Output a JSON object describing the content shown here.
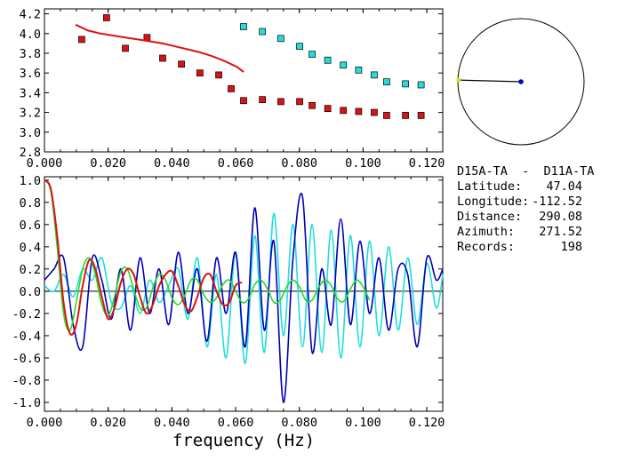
{
  "station_pair": "D15A-TA  -  D11A-TA",
  "info": [
    {
      "label": "Latitude:",
      "value": "47.04"
    },
    {
      "label": "Longitude:",
      "value": "-112.52"
    },
    {
      "label": "Distance:",
      "value": "290.08"
    },
    {
      "label": "Azimuth:",
      "value": "271.52"
    },
    {
      "label": "Records:",
      "value": "198"
    }
  ],
  "colors": {
    "red": "#dd1111",
    "cyan": "#22dddd",
    "blue": "#0000bb",
    "green": "#22dd22",
    "black": "#000000"
  },
  "chart_data": [
    {
      "type": "scatter",
      "title": "",
      "xlabel": "",
      "ylabel": "",
      "xlim": [
        0.0,
        0.125
      ],
      "ylim": [
        2.8,
        4.25
      ],
      "x_ticks": [
        "0.000",
        "0.020",
        "0.040",
        "0.060",
        "0.080",
        "0.100",
        "0.120"
      ],
      "x_tick_values": [
        0,
        0.02,
        0.04,
        0.06,
        0.08,
        0.1,
        0.12
      ],
      "y_ticks": [
        "2.8",
        "3.0",
        "3.2",
        "3.4",
        "3.6",
        "3.8",
        "4.0",
        "4.2"
      ],
      "y_tick_values": [
        2.8,
        3.0,
        3.2,
        3.4,
        3.6,
        3.8,
        4.0,
        4.2
      ],
      "series": [
        {
          "color": "#dd1111",
          "marker": "square",
          "x": [
            0.0117,
            0.0195,
            0.0254,
            0.0322,
            0.0371,
            0.043,
            0.0488,
            0.0547,
            0.0586,
            0.0625,
            0.0684,
            0.0742,
            0.0801,
            0.084,
            0.0889,
            0.0938,
            0.0986,
            0.1035,
            0.1074,
            0.1133,
            0.1182
          ],
          "y": [
            3.94,
            4.16,
            3.85,
            3.96,
            3.75,
            3.69,
            3.6,
            3.58,
            3.44,
            3.32,
            3.33,
            3.31,
            3.31,
            3.27,
            3.24,
            3.22,
            3.21,
            3.2,
            3.17,
            3.17,
            3.17
          ]
        },
        {
          "color": "#22dddd",
          "marker": "square",
          "x": [
            0.0625,
            0.0684,
            0.0742,
            0.0801,
            0.084,
            0.0889,
            0.0938,
            0.0986,
            0.1035,
            0.1074,
            0.1133,
            0.1182
          ],
          "y": [
            4.07,
            4.02,
            3.95,
            3.87,
            3.79,
            3.73,
            3.68,
            3.63,
            3.58,
            3.51,
            3.49,
            3.48
          ]
        },
        {
          "color": "#dd1111",
          "marker": "line",
          "x": [
            0.0098,
            0.0137,
            0.0176,
            0.0215,
            0.0254,
            0.0293,
            0.0332,
            0.0371,
            0.041,
            0.0449,
            0.0488,
            0.0527,
            0.0566,
            0.0605,
            0.0625
          ],
          "y": [
            4.09,
            4.03,
            4.0,
            3.98,
            3.96,
            3.94,
            3.92,
            3.9,
            3.87,
            3.84,
            3.81,
            3.77,
            3.72,
            3.66,
            3.61
          ]
        }
      ]
    },
    {
      "type": "line",
      "title": "",
      "xlabel": "frequency (Hz)",
      "ylabel": "",
      "xlim": [
        0.0,
        0.125
      ],
      "ylim": [
        -1.08,
        1.03
      ],
      "x_ticks": [
        "0.000",
        "0.020",
        "0.040",
        "0.060",
        "0.080",
        "0.100",
        "0.120"
      ],
      "x_tick_values": [
        0,
        0.02,
        0.04,
        0.06,
        0.08,
        0.1,
        0.12
      ],
      "y_ticks": [
        "1.0",
        "0.8",
        "0.6",
        "0.4",
        "0.2",
        "0.0",
        "-0.2",
        "-0.4",
        "-0.6",
        "-0.8",
        "-1.0"
      ],
      "y_tick_values": [
        1.0,
        0.8,
        0.6,
        0.4,
        0.2,
        0.0,
        -0.2,
        -0.4,
        -0.6,
        -0.8,
        -1.0
      ],
      "zero_line": true,
      "series": [
        {
          "color": "#22dddd",
          "x": [
            0.0,
            0.003,
            0.006,
            0.009,
            0.012,
            0.015,
            0.018,
            0.021,
            0.024,
            0.027,
            0.03,
            0.033,
            0.036,
            0.039,
            0.042,
            0.045,
            0.048,
            0.051,
            0.054,
            0.057,
            0.06,
            0.063,
            0.066,
            0.069,
            0.072,
            0.075,
            0.078,
            0.081,
            0.084,
            0.087,
            0.09,
            0.093,
            0.096,
            0.099,
            0.102,
            0.105,
            0.108,
            0.111,
            0.114,
            0.117,
            0.12,
            0.123,
            0.125
          ],
          "y": [
            0.05,
            0.0,
            0.15,
            -0.05,
            0.2,
            0.1,
            0.3,
            -0.1,
            -0.15,
            0.05,
            -0.2,
            0.1,
            -0.1,
            0.05,
            0.2,
            -0.25,
            0.3,
            -0.5,
            0.15,
            -0.6,
            0.35,
            -0.65,
            0.5,
            -0.55,
            0.7,
            -0.4,
            0.6,
            -0.5,
            0.6,
            -0.55,
            0.55,
            -0.6,
            0.5,
            -0.5,
            0.45,
            -0.4,
            0.4,
            -0.35,
            0.3,
            -0.3,
            0.25,
            -0.15,
            0.15
          ]
        },
        {
          "color": "#0000bb",
          "x": [
            0.0,
            0.003,
            0.006,
            0.009,
            0.012,
            0.015,
            0.018,
            0.021,
            0.024,
            0.027,
            0.03,
            0.033,
            0.036,
            0.039,
            0.042,
            0.045,
            0.048,
            0.051,
            0.054,
            0.057,
            0.06,
            0.063,
            0.066,
            0.069,
            0.072,
            0.075,
            0.078,
            0.081,
            0.084,
            0.087,
            0.09,
            0.093,
            0.096,
            0.099,
            0.102,
            0.105,
            0.108,
            0.111,
            0.114,
            0.117,
            0.12,
            0.123,
            0.125
          ],
          "y": [
            0.1,
            0.2,
            0.3,
            -0.3,
            -0.5,
            0.3,
            0.1,
            -0.25,
            0.2,
            -0.35,
            0.3,
            -0.2,
            0.2,
            -0.3,
            0.35,
            -0.2,
            0.2,
            -0.45,
            0.3,
            -0.2,
            0.35,
            -0.5,
            0.75,
            -0.35,
            0.45,
            -1.0,
            0.3,
            0.85,
            -0.55,
            0.2,
            -0.3,
            0.65,
            -0.3,
            0.45,
            -0.2,
            0.3,
            -0.35,
            0.2,
            0.15,
            -0.5,
            0.3,
            0.1,
            0.2
          ]
        },
        {
          "color": "#22dd22",
          "x": [
            0.0,
            0.002,
            0.004,
            0.006,
            0.008,
            0.01,
            0.012,
            0.014,
            0.016,
            0.018,
            0.02,
            0.022,
            0.024,
            0.026,
            0.028,
            0.03,
            0.032,
            0.034,
            0.036,
            0.038,
            0.04,
            0.042,
            0.044,
            0.046,
            0.048,
            0.05,
            0.052,
            0.054,
            0.056,
            0.058,
            0.06,
            0.062,
            0.064,
            0.066,
            0.068,
            0.07,
            0.072,
            0.074,
            0.076,
            0.078,
            0.08,
            0.082,
            0.084,
            0.086,
            0.088,
            0.09,
            0.092,
            0.094,
            0.096,
            0.098,
            0.1,
            0.102
          ],
          "y": [
            1.0,
            0.9,
            0.4,
            -0.2,
            -0.35,
            -0.1,
            0.2,
            0.3,
            0.15,
            -0.12,
            -0.22,
            -0.05,
            0.18,
            0.2,
            0.02,
            -0.15,
            -0.15,
            0.03,
            0.15,
            0.1,
            -0.06,
            -0.12,
            -0.04,
            0.1,
            0.1,
            -0.03,
            -0.1,
            -0.06,
            0.06,
            0.1,
            0.0,
            -0.1,
            -0.07,
            0.06,
            0.1,
            0.02,
            -0.1,
            -0.08,
            0.04,
            0.1,
            0.04,
            -0.08,
            -0.08,
            0.03,
            0.1,
            0.05,
            -0.07,
            -0.09,
            0.02,
            0.1,
            0.04,
            -0.08
          ]
        },
        {
          "color": "#dd1111",
          "x": [
            0.0,
            0.002,
            0.004,
            0.006,
            0.008,
            0.01,
            0.012,
            0.014,
            0.016,
            0.018,
            0.02,
            0.022,
            0.024,
            0.026,
            0.028,
            0.03,
            0.032,
            0.034,
            0.036,
            0.038,
            0.04,
            0.042,
            0.044,
            0.046,
            0.048,
            0.05,
            0.052,
            0.054,
            0.056,
            0.058,
            0.06,
            0.062
          ],
          "y": [
            1.0,
            0.92,
            0.5,
            -0.1,
            -0.38,
            -0.3,
            0.05,
            0.28,
            0.2,
            -0.05,
            -0.25,
            -0.15,
            0.08,
            0.2,
            0.15,
            -0.05,
            -0.2,
            -0.12,
            0.05,
            0.15,
            0.18,
            0.05,
            -0.12,
            -0.18,
            -0.05,
            0.12,
            0.15,
            0.0,
            -0.12,
            -0.1,
            0.05,
            0.08
          ]
        }
      ]
    },
    {
      "type": "polar",
      "title": "",
      "azimuth_deg": 271.52,
      "colors": {
        "circle": "#000000",
        "origin": "#0000bb",
        "endpoint": "#dddd22"
      }
    }
  ]
}
